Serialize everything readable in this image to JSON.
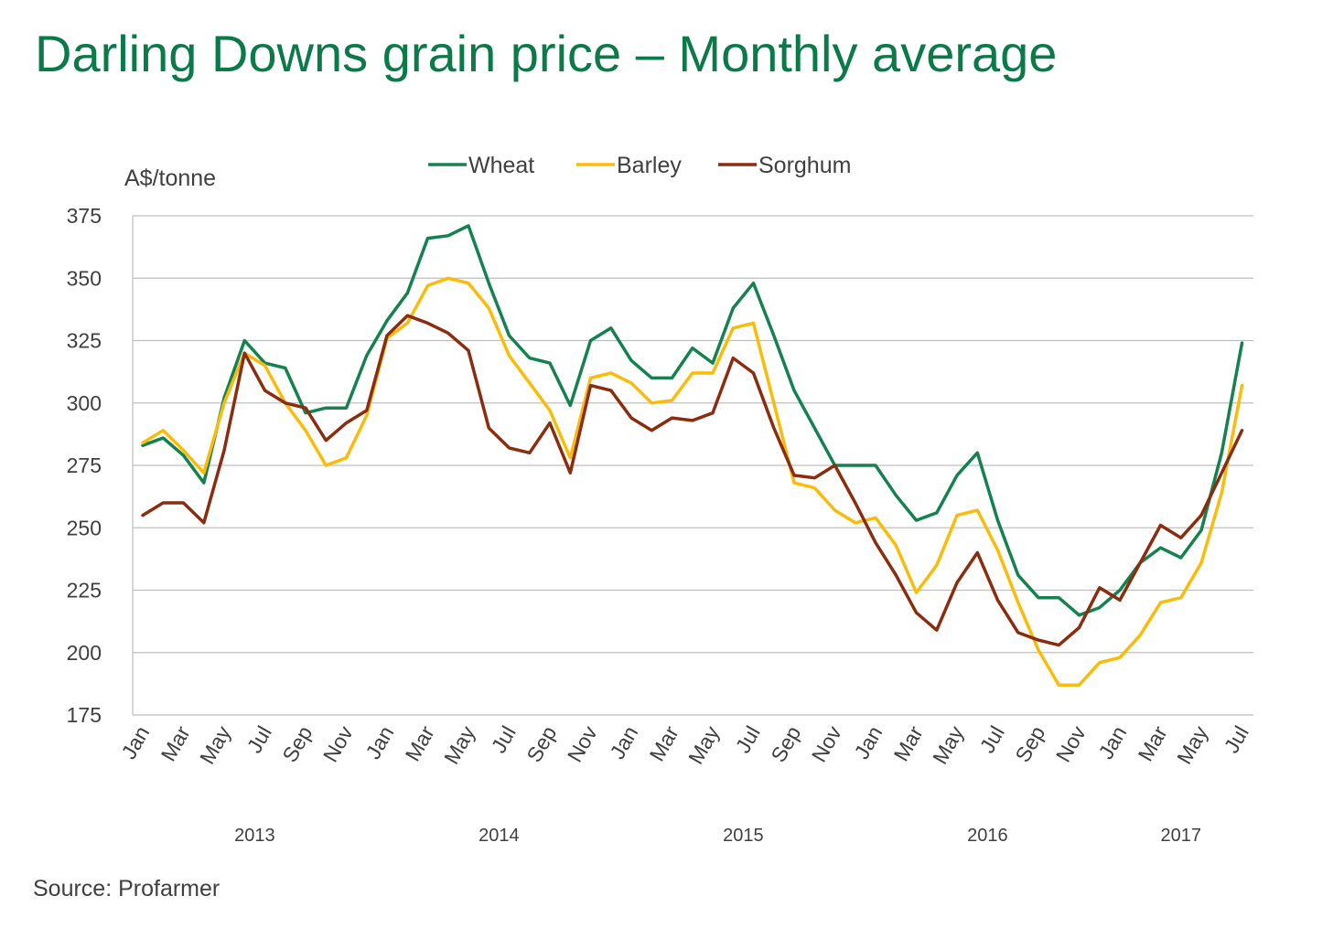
{
  "title": "Darling Downs grain price – Monthly average",
  "source": "Source: Profarmer",
  "chart_data": {
    "type": "line",
    "title": "Darling Downs grain price – Monthly average",
    "ylabel": "A$/tonne",
    "ylim": [
      175,
      375
    ],
    "yticks": [
      175,
      200,
      225,
      250,
      275,
      300,
      325,
      350,
      375
    ],
    "grid": true,
    "legend_position": "top",
    "x": [
      "Jan 2013",
      "Feb 2013",
      "Mar 2013",
      "Apr 2013",
      "May 2013",
      "Jun 2013",
      "Jul 2013",
      "Aug 2013",
      "Sep 2013",
      "Oct 2013",
      "Nov 2013",
      "Dec 2013",
      "Jan 2014",
      "Feb 2014",
      "Mar 2014",
      "Apr 2014",
      "May 2014",
      "Jun 2014",
      "Jul 2014",
      "Aug 2014",
      "Sep 2014",
      "Oct 2014",
      "Nov 2014",
      "Dec 2014",
      "Jan 2015",
      "Feb 2015",
      "Mar 2015",
      "Apr 2015",
      "May 2015",
      "Jun 2015",
      "Jul 2015",
      "Aug 2015",
      "Sep 2015",
      "Oct 2015",
      "Nov 2015",
      "Dec 2015",
      "Jan 2016",
      "Feb 2016",
      "Mar 2016",
      "Apr 2016",
      "May 2016",
      "Jun 2016",
      "Jul 2016",
      "Aug 2016",
      "Sep 2016",
      "Oct 2016",
      "Nov 2016",
      "Dec 2016",
      "Jan 2017",
      "Feb 2017",
      "Mar 2017",
      "Apr 2017",
      "May 2017",
      "Jun 2017",
      "Jul 2017"
    ],
    "month_tick_labels": [
      "Jan",
      "Mar",
      "May",
      "Jul",
      "Sep",
      "Nov",
      "Jan",
      "Mar",
      "May",
      "Jul",
      "Sep",
      "Nov",
      "Jan",
      "Mar",
      "May",
      "Jul",
      "Sep",
      "Nov",
      "Jan",
      "Mar",
      "May",
      "Jul",
      "Sep",
      "Nov",
      "Jan",
      "Mar",
      "May",
      "Jul"
    ],
    "year_labels": [
      {
        "label": "2013",
        "start": 0,
        "end": 11
      },
      {
        "label": "2014",
        "start": 12,
        "end": 23
      },
      {
        "label": "2015",
        "start": 24,
        "end": 35
      },
      {
        "label": "2016",
        "start": 36,
        "end": 47
      },
      {
        "label": "2017",
        "start": 48,
        "end": 54
      }
    ],
    "series": [
      {
        "name": "Wheat",
        "color": "#14824f",
        "values": [
          283,
          286,
          279,
          268,
          302,
          325,
          316,
          314,
          296,
          298,
          298,
          319,
          333,
          344,
          366,
          367,
          371,
          348,
          327,
          318,
          316,
          299,
          325,
          330,
          317,
          310,
          310,
          322,
          316,
          338,
          348,
          327,
          305,
          290,
          275,
          275,
          275,
          263,
          253,
          256,
          271,
          280,
          253,
          231,
          222,
          222,
          215,
          218,
          225,
          236,
          242,
          238,
          249,
          280,
          324
        ]
      },
      {
        "name": "Barley",
        "color": "#fbbc09",
        "values": [
          284,
          289,
          281,
          272,
          300,
          320,
          315,
          300,
          289,
          275,
          278,
          295,
          326,
          332,
          347,
          350,
          348,
          338,
          319,
          308,
          297,
          278,
          310,
          312,
          308,
          300,
          301,
          312,
          312,
          330,
          332,
          300,
          268,
          266,
          257,
          252,
          254,
          243,
          224,
          235,
          255,
          257,
          241,
          220,
          201,
          187,
          187,
          196,
          198,
          207,
          220,
          222,
          236,
          264,
          307
        ]
      },
      {
        "name": "Sorghum",
        "color": "#8b2c0f",
        "values": [
          255,
          260,
          260,
          252,
          281,
          320,
          305,
          300,
          298,
          285,
          292,
          297,
          327,
          335,
          332,
          328,
          321,
          290,
          282,
          280,
          292,
          272,
          307,
          305,
          294,
          289,
          294,
          293,
          296,
          318,
          312,
          290,
          271,
          270,
          275,
          260,
          244,
          231,
          216,
          209,
          228,
          240,
          221,
          208,
          205,
          203,
          210,
          226,
          221,
          236,
          251,
          246,
          255,
          272,
          289
        ]
      }
    ]
  }
}
